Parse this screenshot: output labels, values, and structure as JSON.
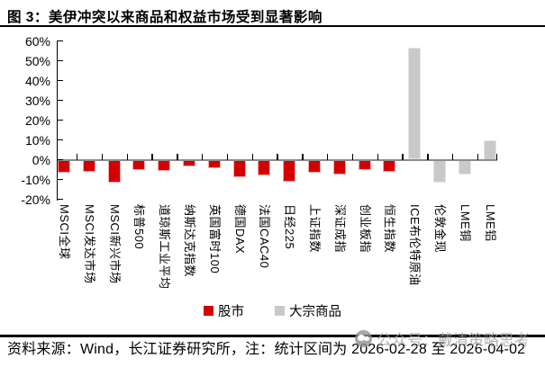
{
  "title": "图 3：美伊冲突以来商品和权益市场受到显著影响",
  "chart_data": {
    "type": "bar",
    "title": "美伊冲突以来商品和权益市场受到显著影响",
    "categories": [
      "MSCI全球",
      "MSCI发达市场",
      "MSCI新兴市场",
      "标普500",
      "道琼斯工业平均",
      "纳斯达克指数",
      "英国富时100",
      "德国DAX",
      "法国CAC40",
      "日经225",
      "上证指数",
      "深证成指",
      "创业板指",
      "恒生指数",
      "ICE布伦特原油",
      "伦敦金现",
      "LME铜",
      "LME铝"
    ],
    "series": [
      {
        "name": "股市",
        "color": "#d40000",
        "edge": "#f2acac",
        "values": [
          -6.5,
          -6,
          -11.5,
          -5,
          -5.5,
          -3.5,
          -4.5,
          -9,
          -8,
          -11,
          -6.5,
          -7.5,
          -5,
          -6,
          null,
          null,
          null,
          null
        ]
      },
      {
        "name": "大宗商品",
        "color": "#c9c9c9",
        "edge": "#e5e5e5",
        "values": [
          null,
          null,
          null,
          null,
          null,
          null,
          null,
          null,
          null,
          null,
          null,
          null,
          null,
          null,
          56.5,
          -11.5,
          -7.5,
          10
        ]
      }
    ],
    "unit": "%",
    "ylim": [
      -20,
      60
    ],
    "y_ticks": [
      "60%",
      "50%",
      "40%",
      "30%",
      "20%",
      "10%",
      "0%",
      "-10%",
      "-20%"
    ],
    "grid": false,
    "legend_position": "bottom"
  },
  "legend": {
    "items": [
      {
        "label": "股市",
        "color": "#d40000"
      },
      {
        "label": "大宗商品",
        "color": "#c9c9c9"
      }
    ]
  },
  "footer": {
    "text": "资料来源：Wind，长江证券研究所，注：统计区间为 2026-02-28 至 2026-04-02"
  },
  "watermark": {
    "icon": "wechat-official-account-icon",
    "text": "公众号：戴清策略思考"
  },
  "colors": {
    "stock_bar": "#d40000",
    "commodity_bar": "#c9c9c9",
    "zero_line": "#8c8c8c",
    "axis": "#000000"
  }
}
